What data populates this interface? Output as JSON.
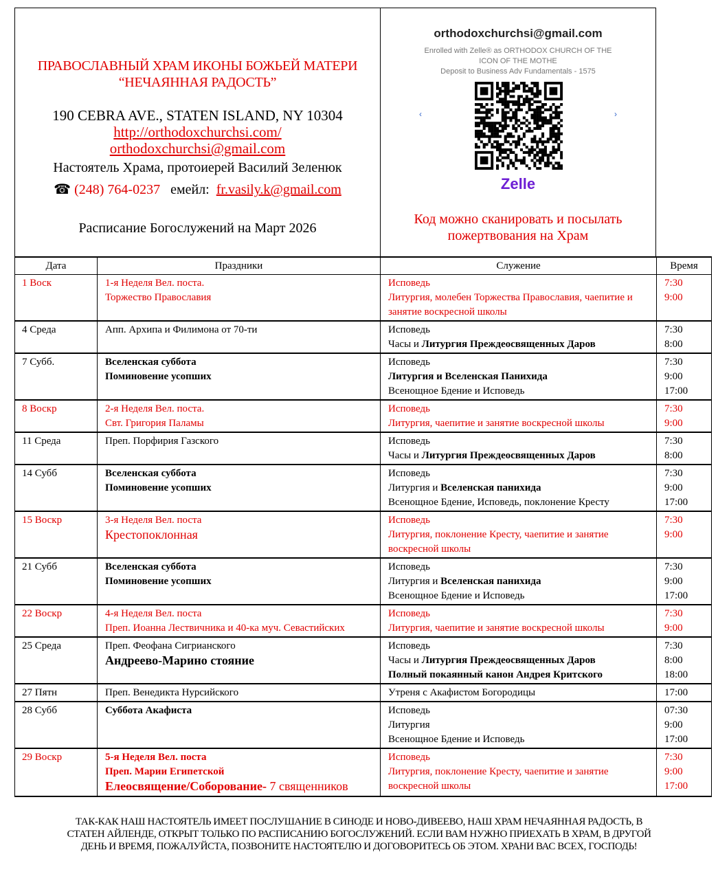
{
  "header": {
    "church_name_line1": "ПРАВОСЛАВНЫЙ ХРАМ ИКОНЫ БОЖЬЕЙ МАТЕРИ",
    "church_name_line2": "“НЕЧАЯННАЯ РАДОСТЬ”",
    "address": "190 CEBRA AVE., STATEN ISLAND, NY 10304",
    "website": "http://orthodoxchurchsi.com/",
    "email": "orthodoxchurchsi@gmail.com",
    "rector": "Настоятель Храма, протоиерей Василий Зеленюк",
    "phone_icon": "telephone-icon",
    "phone": "(248) 764-0237",
    "email_label": "емейл:",
    "rector_email": "fr.vasily.k@gmail.com",
    "schedule_title": "Расписание Богослужений на Март 2026"
  },
  "zelle": {
    "email": "orthodoxchurchsi@gmail.com",
    "enrolled_line1": "Enrolled with Zelle® as ORTHODOX CHURCH OF THE",
    "enrolled_line2": "ICON OF THE MOTHE",
    "deposit": "Deposit to Business Adv Fundamentals - 1575",
    "logo": "Zelle",
    "caption_line1": "Код можно сканировать и посылать",
    "caption_line2": "пожертвования на Храм",
    "brand_color": "#6d1ed4"
  },
  "table": {
    "headers": [
      "Дата",
      "Праздники",
      "Служение",
      "Время"
    ],
    "rows": [
      {
        "date": "1 Воск",
        "red": true,
        "holidays": [
          [
            {
              "t": "1-я Неделя Вел. поста."
            }
          ],
          [
            {
              "t": "Торжество Православия"
            }
          ]
        ],
        "services": [
          [
            {
              "t": "Исповедь"
            }
          ],
          [
            {
              "t": "Литургия, молебен Торжества Православия, чаепитие и занятие воскресной школы"
            }
          ]
        ],
        "times": [
          "7:30",
          "9:00"
        ]
      },
      {
        "date": "4 Среда",
        "red": false,
        "holidays": [
          [
            {
              "t": "Апп. Архипа и Филимона от 70-ти"
            }
          ]
        ],
        "services": [
          [
            {
              "t": "Исповедь"
            }
          ],
          [
            {
              "t": "Часы и "
            },
            {
              "t": "Литургия Преждеосвященных Даров",
              "b": true
            }
          ]
        ],
        "times": [
          "7:30",
          "8:00"
        ]
      },
      {
        "date": "7 Субб.",
        "red": false,
        "holidays": [
          [
            {
              "t": "Вселенская суббота",
              "b": true
            }
          ],
          [
            {
              "t": "Поминовение усопших",
              "b": true
            }
          ]
        ],
        "services": [
          [
            {
              "t": "Исповедь"
            }
          ],
          [
            {
              "t": "Литургия и Вселенская Панихида",
              "b": true
            }
          ],
          [
            {
              "t": "Всенощное Бдение и Исповедь"
            }
          ]
        ],
        "times": [
          "7:30",
          "9:00",
          "17:00"
        ]
      },
      {
        "date": "8 Воскр",
        "red": true,
        "holidays": [
          [
            {
              "t": "2-я Неделя Вел. поста."
            }
          ],
          [
            {
              "t": "Свт. Григория Паламы"
            }
          ]
        ],
        "services": [
          [
            {
              "t": "Исповедь"
            }
          ],
          [
            {
              "t": "Литургия, чаепитие и занятие воскресной школы"
            }
          ]
        ],
        "times": [
          "7:30",
          "9:00"
        ]
      },
      {
        "date": "11 Среда",
        "red": false,
        "holidays": [
          [
            {
              "t": "Преп. Порфирия Газского"
            }
          ]
        ],
        "services": [
          [
            {
              "t": "Исповедь"
            }
          ],
          [
            {
              "t": "Часы и "
            },
            {
              "t": "Литургия Преждеосвященных Даров",
              "b": true
            }
          ]
        ],
        "times": [
          "7:30",
          "8:00"
        ]
      },
      {
        "date": "14 Субб",
        "red": false,
        "holidays": [
          [
            {
              "t": "Вселенская суббота",
              "b": true
            }
          ],
          [
            {
              "t": "Поминовение усопших",
              "b": true
            }
          ]
        ],
        "services": [
          [
            {
              "t": "Исповедь"
            }
          ],
          [
            {
              "t": "Литургия и "
            },
            {
              "t": "Вселенская панихида",
              "b": true
            }
          ],
          [
            {
              "t": "Всенощное Бдение, Исповедь, поклонение Кресту"
            }
          ]
        ],
        "times": [
          "7:30",
          "9:00",
          "17:00"
        ]
      },
      {
        "date": "15 Воскр",
        "red": true,
        "holidays": [
          [
            {
              "t": "3-я Неделя Вел. поста"
            }
          ],
          [
            {
              "t": "Крестопоклонная",
              "big": true
            }
          ]
        ],
        "services": [
          [
            {
              "t": "Исповедь"
            }
          ],
          [
            {
              "t": "Литургия, поклонение Кресту, чаепитие и занятие воскресной школы"
            }
          ]
        ],
        "times": [
          "7:30",
          "9:00"
        ]
      },
      {
        "date": "21 Субб",
        "red": false,
        "holidays": [
          [
            {
              "t": "Вселенская суббота",
              "b": true
            }
          ],
          [
            {
              "t": "Поминовение усопших",
              "b": true
            }
          ]
        ],
        "services": [
          [
            {
              "t": "Исповедь"
            }
          ],
          [
            {
              "t": "Литургия и "
            },
            {
              "t": "Вселенская панихида",
              "b": true
            }
          ],
          [
            {
              "t": "Всенощное Бдение и Исповедь"
            }
          ]
        ],
        "times": [
          "7:30",
          "9:00",
          "17:00"
        ]
      },
      {
        "date": "22 Воскр",
        "red": true,
        "holidays": [
          [
            {
              "t": "4-я Неделя Вел. поста"
            }
          ],
          [
            {
              "t": "Преп. Иоанна Лествичника и 40-ка муч. Севастийских"
            }
          ]
        ],
        "services": [
          [
            {
              "t": "Исповедь"
            }
          ],
          [
            {
              "t": "Литургия, чаепитие и занятие воскресной школы"
            }
          ]
        ],
        "times": [
          "7:30",
          "9:00"
        ]
      },
      {
        "date": "25 Среда",
        "red": false,
        "holidays": [
          [
            {
              "t": "Преп. Феофана Сигрианского"
            }
          ],
          [
            {
              "t": "Андреево-Марино стояние",
              "b": true,
              "big": true
            }
          ]
        ],
        "services": [
          [
            {
              "t": "Исповедь"
            }
          ],
          [
            {
              "t": "Часы и "
            },
            {
              "t": "Литургия Преждеосвященных Даров",
              "b": true
            }
          ],
          [
            {
              "t": "Полный покаянный канон Андрея Критского",
              "b": true
            }
          ]
        ],
        "times": [
          "7:30",
          "8:00",
          "18:00"
        ]
      },
      {
        "date": "27 Пятн",
        "red": false,
        "holidays": [
          [
            {
              "t": "Преп. Венедикта Нурсийского"
            }
          ]
        ],
        "services": [
          [
            {
              "t": "Утреня с Акафистом Богородицы"
            }
          ]
        ],
        "times": [
          "17:00"
        ]
      },
      {
        "date": "28 Субб",
        "red": false,
        "holidays": [
          [
            {
              "t": "Суббота Акафиста",
              "b": true
            }
          ]
        ],
        "services": [
          [
            {
              "t": "Исповедь"
            }
          ],
          [
            {
              "t": "Литургия"
            }
          ],
          [
            {
              "t": "Всенощное Бдение и Исповедь"
            }
          ]
        ],
        "times": [
          "07:30",
          "9:00",
          "17:00"
        ]
      },
      {
        "date": "29 Воскр",
        "red": true,
        "holidays": [
          [
            {
              "t": "5-я Неделя Вел. поста",
              "b": true
            }
          ],
          [
            {
              "t": "Преп. Марии Египетской",
              "b": true
            }
          ],
          [
            {
              "t": "Елеосвящение/Соборование-",
              "b": true,
              "big": true
            },
            {
              "t": " 7 священников",
              "big": true
            }
          ]
        ],
        "services": [
          [
            {
              "t": "Исповедь"
            }
          ],
          [
            {
              "t": "Литургия, поклонение Кресту, чаепитие и занятие воскресной школы"
            }
          ]
        ],
        "times": [
          "7:30",
          "9:00",
          "17:00"
        ]
      }
    ]
  },
  "footer": {
    "line1": "ТАК-КАК НАШ НАСТОЯТЕЛЬ ИМЕЕТ ПОСЛУШАНИЕ В СИНОДЕ И НОВО-ДИВЕЕВО, НАШ ХРАМ НЕЧАЯННАЯ РАДОСТЬ, В",
    "line2": "СТАТЕН АЙЛЕНДЕ, ОТКРЫТ ТОЛЬКО ПО РАСПИСАНИЮ БОГОСЛУЖЕНИЙ. ЕСЛИ ВАМ НУЖНО ПРИЕХАТЬ В ХРАМ, В ДРУГОЙ",
    "line3": "ДЕНЬ И ВРЕМЯ, ПОЖАЛУЙСТА, ПОЗВОНИТЕ НАСТОЯТЕЛЮ И ДОГОВОРИТЕСЬ ОБ ЭТОМ. ХРАНИ ВАС ВСЕХ, ГОСПОДЬ!"
  },
  "colors": {
    "accent_red": "#e00000"
  }
}
